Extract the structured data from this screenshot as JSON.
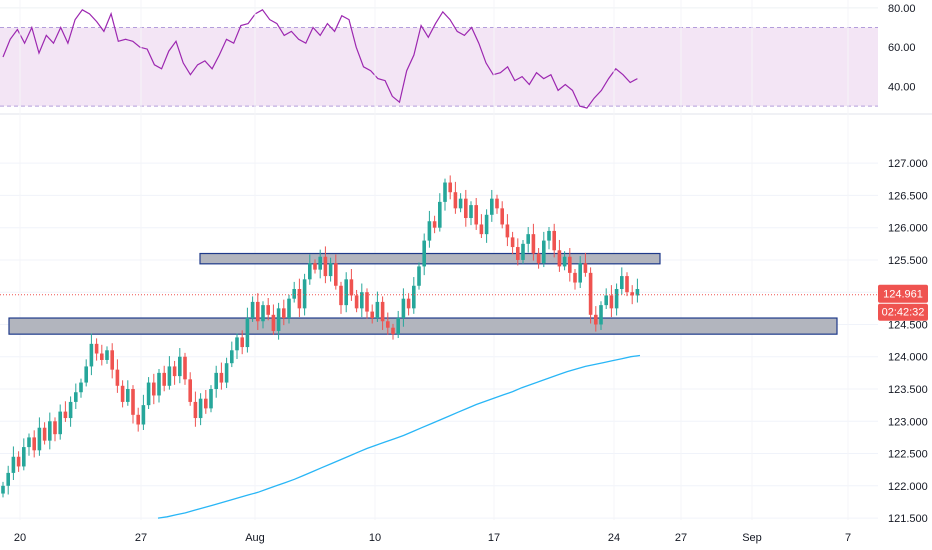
{
  "chart_data": [
    {
      "type": "line",
      "panel": "oscillator",
      "yticks": [
        40,
        60,
        80
      ],
      "ytick_labels": [
        "40.00",
        "60.00",
        "80.00"
      ],
      "ylim": [
        27,
        84
      ],
      "bands": {
        "upper": 70,
        "lower": 30
      },
      "grid": true,
      "colors": {
        "line": "#9c27b0",
        "band_fill": "#f3e5f5",
        "band_border": "#b39ddb"
      },
      "values": [
        55,
        64,
        69,
        62,
        70,
        57,
        66,
        62,
        70,
        62,
        74,
        79,
        77,
        73,
        68,
        77,
        63,
        64,
        63,
        60,
        59,
        51,
        49,
        58,
        63,
        52,
        46,
        51,
        53,
        49,
        56,
        64,
        62,
        71,
        72,
        77,
        79,
        74,
        72,
        66,
        68,
        64,
        62,
        70,
        66,
        72,
        68,
        76,
        74,
        60,
        50,
        48,
        44,
        43,
        35,
        32,
        48,
        56,
        71,
        65,
        72,
        78,
        74,
        68,
        66,
        70,
        62,
        52,
        46,
        47,
        50,
        43,
        45,
        41,
        47,
        44,
        46,
        38,
        41,
        38,
        30,
        29,
        34,
        38,
        44,
        49,
        46,
        42,
        44
      ]
    },
    {
      "type": "candlestick",
      "panel": "price",
      "ylim": [
        121.47,
        127.7
      ],
      "yticks": [
        121.5,
        122.0,
        122.5,
        123.0,
        123.5,
        124.0,
        124.5,
        125.0,
        125.5,
        126.0,
        126.5,
        127.0
      ],
      "ytick_labels": [
        "121.500",
        "122.000",
        "122.500",
        "123.000",
        "123.500",
        "124.000",
        "124.500",
        "125.000",
        "125.500",
        "126.000",
        "126.500",
        "127.000"
      ],
      "xtick_labels": [
        "20",
        "27",
        "Aug",
        "10",
        "17",
        "24",
        "27",
        "Sep",
        "7"
      ],
      "grid": true,
      "colors": {
        "up": "#26a69a",
        "down": "#ef5350",
        "moving_average": "#29b6f6",
        "zone_fill": "#b2b5be",
        "zone_border": "#1e3a8a",
        "price_line": "#ef5350"
      },
      "closes": [
        122.0,
        122.2,
        122.45,
        122.3,
        122.6,
        122.75,
        122.55,
        122.9,
        122.7,
        123.0,
        122.8,
        123.15,
        123.05,
        123.3,
        123.45,
        123.6,
        123.85,
        124.2,
        124.05,
        123.95,
        124.1,
        123.8,
        123.55,
        123.3,
        123.5,
        123.1,
        122.95,
        123.25,
        123.6,
        123.4,
        123.75,
        123.55,
        123.85,
        123.7,
        124.0,
        123.65,
        123.3,
        123.05,
        123.35,
        123.2,
        123.5,
        123.75,
        123.6,
        123.9,
        124.1,
        124.3,
        124.15,
        124.6,
        124.85,
        124.55,
        124.8,
        124.65,
        124.4,
        124.75,
        124.6,
        124.9,
        125.05,
        124.75,
        125.2,
        125.45,
        125.35,
        125.55,
        125.25,
        125.45,
        125.1,
        124.8,
        125.2,
        124.95,
        124.75,
        125.0,
        124.7,
        124.6,
        124.85,
        124.55,
        124.45,
        124.35,
        124.6,
        124.9,
        124.75,
        125.1,
        125.4,
        125.8,
        126.1,
        126.0,
        126.4,
        126.7,
        126.55,
        126.3,
        126.45,
        126.15,
        126.35,
        126.05,
        125.9,
        126.2,
        126.45,
        126.3,
        126.05,
        125.85,
        125.7,
        125.5,
        125.75,
        125.9,
        125.6,
        125.45,
        125.8,
        125.95,
        125.65,
        125.4,
        125.55,
        125.3,
        125.15,
        125.45,
        125.3,
        124.65,
        124.5,
        124.8,
        124.95,
        124.75,
        125.05,
        125.25,
        125.0,
        124.95,
        125.05
      ],
      "moving_average": {
        "x_start_index": 20,
        "values": [
          121.5,
          121.52,
          121.55,
          121.58,
          121.62,
          121.66,
          121.7,
          121.74,
          121.78,
          121.82,
          121.86,
          121.9,
          121.95,
          122.0,
          122.05,
          122.1,
          122.16,
          122.22,
          122.28,
          122.34,
          122.4,
          122.46,
          122.52,
          122.58,
          122.63,
          122.68,
          122.73,
          122.78,
          122.84,
          122.9,
          122.96,
          123.02,
          123.08,
          123.14,
          123.2,
          123.26,
          123.31,
          123.36,
          123.41,
          123.46,
          123.52,
          123.57,
          123.62,
          123.67,
          123.72,
          123.77,
          123.81,
          123.85,
          123.88,
          123.91,
          123.94,
          123.97,
          124.0,
          124.02
        ]
      },
      "zones": [
        {
          "top": 125.6,
          "bottom": 125.44
        },
        {
          "top": 124.6,
          "bottom": 124.35
        }
      ],
      "current_price": 124.961,
      "current_price_label": "124.961",
      "countdown_label": "02:42:32"
    }
  ]
}
